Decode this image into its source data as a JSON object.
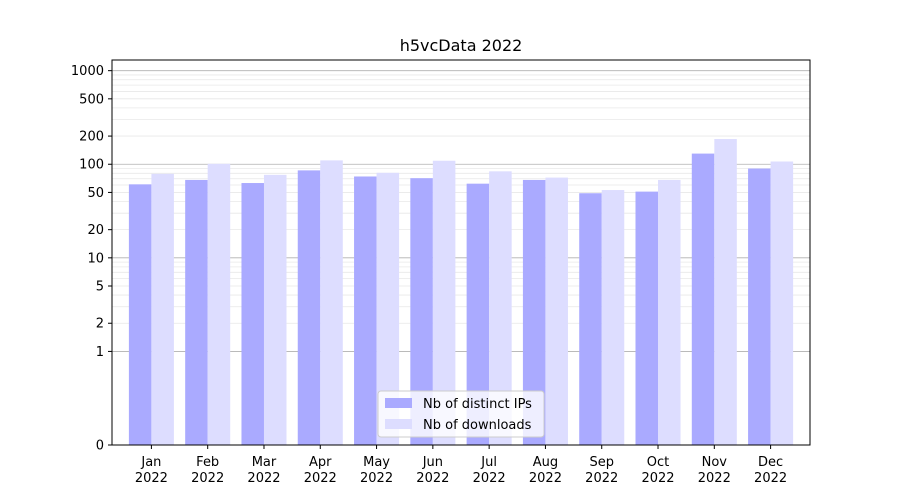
{
  "chart_data": {
    "type": "bar",
    "title": "h5vcData 2022",
    "xlabel": "",
    "ylabel": "",
    "y_scale": "symlog",
    "ylim": [
      0,
      1300
    ],
    "y_ticks": [
      0,
      1,
      2,
      5,
      10,
      20,
      50,
      100,
      200,
      500,
      1000
    ],
    "grid": true,
    "legend_position": "bottom-center",
    "categories": [
      {
        "month": "Jan",
        "year": "2022"
      },
      {
        "month": "Feb",
        "year": "2022"
      },
      {
        "month": "Mar",
        "year": "2022"
      },
      {
        "month": "Apr",
        "year": "2022"
      },
      {
        "month": "May",
        "year": "2022"
      },
      {
        "month": "Jun",
        "year": "2022"
      },
      {
        "month": "Jul",
        "year": "2022"
      },
      {
        "month": "Aug",
        "year": "2022"
      },
      {
        "month": "Sep",
        "year": "2022"
      },
      {
        "month": "Oct",
        "year": "2022"
      },
      {
        "month": "Nov",
        "year": "2022"
      },
      {
        "month": "Dec",
        "year": "2022"
      }
    ],
    "series": [
      {
        "name": "Nb of distinct IPs",
        "color": "#aaaaff",
        "values": [
          61,
          68,
          63,
          86,
          74,
          71,
          62,
          68,
          49,
          51,
          130,
          90
        ]
      },
      {
        "name": "Nb of downloads",
        "color": "#ddddff",
        "values": [
          79,
          101,
          77,
          110,
          81,
          109,
          84,
          72,
          53,
          68,
          186,
          107
        ]
      }
    ]
  }
}
